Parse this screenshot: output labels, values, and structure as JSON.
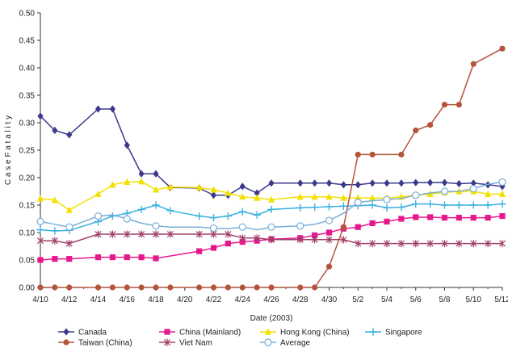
{
  "chart_data": {
    "type": "line",
    "title": "",
    "xlabel": "Date (2003)",
    "ylabel": "C a s e   F a t a l i t y",
    "ylim": [
      0,
      0.5
    ],
    "yticks": [
      "0.00",
      "0.05",
      "0.10",
      "0.15",
      "0.20",
      "0.25",
      "0.30",
      "0.35",
      "0.40",
      "0.45",
      "0.50"
    ],
    "xticks": [
      "4/10",
      "4/12",
      "4/14",
      "4/16",
      "4/18",
      "4/20",
      "4/22",
      "4/24",
      "4/26",
      "4/28",
      "4/30",
      "5/2",
      "5/4",
      "5/6",
      "5/8",
      "5/10",
      "5/12"
    ],
    "grid": false,
    "legend_position": "bottom",
    "x_days": [
      0,
      1,
      2,
      3,
      4,
      5,
      6,
      7,
      8,
      9,
      10,
      11,
      12,
      13,
      14,
      15,
      16,
      17,
      18,
      19,
      20,
      21,
      22,
      23,
      24,
      25,
      26,
      27,
      28,
      29,
      30,
      31,
      32
    ],
    "series": [
      {
        "name": "Canada",
        "color": "#3d3a8c",
        "marker": "diamond",
        "values": [
          0.312,
          0.286,
          0.278,
          null,
          0.325,
          0.325,
          0.259,
          0.207,
          0.207,
          0.182,
          null,
          0.181,
          0.168,
          0.168,
          0.184,
          0.172,
          0.19,
          null,
          0.19,
          0.19,
          0.19,
          0.187,
          0.187,
          0.19,
          0.19,
          0.19,
          0.191,
          0.191,
          0.191,
          0.189,
          0.19,
          0.187,
          0.184
        ]
      },
      {
        "name": "China (Mainland)",
        "color": "#e6198c",
        "marker": "square",
        "values": [
          0.05,
          0.052,
          0.052,
          null,
          0.055,
          0.055,
          0.055,
          0.055,
          0.053,
          null,
          null,
          0.066,
          0.072,
          0.08,
          0.083,
          0.085,
          0.088,
          null,
          0.09,
          0.095,
          0.1,
          0.107,
          0.11,
          0.117,
          0.12,
          0.125,
          0.128,
          0.128,
          0.127,
          0.127,
          0.127,
          0.127,
          0.13
        ]
      },
      {
        "name": "Hong Kong (China)",
        "color": "#f2e000",
        "marker": "triangle",
        "values": [
          0.162,
          0.159,
          0.141,
          null,
          0.17,
          0.187,
          0.192,
          0.193,
          0.178,
          0.183,
          null,
          0.182,
          0.178,
          0.172,
          0.165,
          0.163,
          0.16,
          null,
          0.165,
          0.165,
          0.165,
          0.163,
          0.163,
          0.163,
          0.163,
          0.165,
          0.168,
          0.17,
          0.173,
          0.175,
          0.175,
          0.17,
          0.17
        ]
      },
      {
        "name": "Singapore",
        "color": "#3ab0e0",
        "marker": "plus",
        "values": [
          0.105,
          0.103,
          0.104,
          null,
          0.12,
          0.13,
          0.135,
          0.142,
          0.15,
          0.14,
          null,
          0.13,
          0.127,
          0.13,
          0.138,
          0.132,
          0.142,
          null,
          0.145,
          0.146,
          0.147,
          0.148,
          0.149,
          0.15,
          0.145,
          0.146,
          0.152,
          0.152,
          0.15,
          0.15,
          0.15,
          0.15,
          0.152
        ]
      },
      {
        "name": "Taiwan (China)",
        "color": "#b4543a",
        "marker": "circle",
        "values": [
          0,
          0,
          0,
          null,
          0,
          0,
          0,
          0,
          0,
          0,
          null,
          0,
          0,
          0,
          0,
          0,
          0,
          null,
          0,
          0,
          0.038,
          0.11,
          0.242,
          0.242,
          null,
          0.242,
          0.286,
          0.296,
          0.333,
          0.333,
          0.407,
          null,
          0.435
        ]
      },
      {
        "name": "Viet Nam",
        "color": "#a0406a",
        "marker": "star",
        "values": [
          0.085,
          0.085,
          0.08,
          null,
          0.097,
          0.097,
          0.097,
          0.097,
          0.097,
          0.097,
          null,
          0.097,
          0.097,
          0.097,
          0.09,
          0.09,
          0.087,
          null,
          0.087,
          0.087,
          0.087,
          0.087,
          0.08,
          0.08,
          0.08,
          0.08,
          0.08,
          0.08,
          0.08,
          0.08,
          0.08,
          0.08,
          0.08
        ]
      },
      {
        "name": "Average",
        "color": "#7aaed6",
        "marker": "open-circle",
        "values": [
          0.12,
          0.115,
          0.11,
          null,
          0.13,
          0.132,
          0.125,
          0.117,
          0.112,
          0.11,
          null,
          0.11,
          0.108,
          0.107,
          0.11,
          0.105,
          0.11,
          null,
          0.112,
          0.115,
          0.122,
          0.135,
          0.155,
          0.158,
          0.16,
          0.162,
          0.168,
          0.172,
          0.175,
          0.175,
          0.18,
          0.188,
          0.192
        ]
      }
    ]
  }
}
